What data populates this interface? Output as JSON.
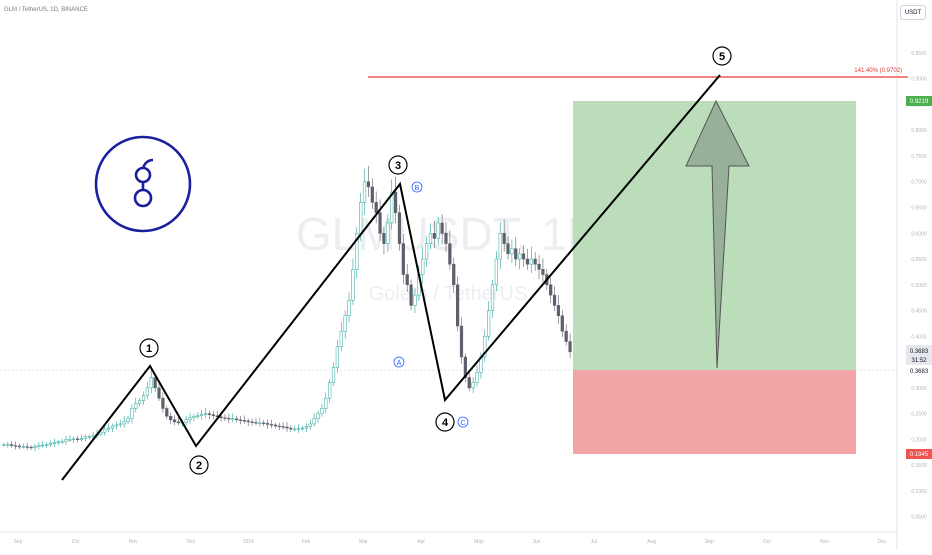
{
  "header": {
    "title": "GLM / TetherUS, 1D, BINANCE",
    "currency": "USDT"
  },
  "watermark": {
    "symbol": "GLMUSDT, 1D",
    "subtitle": "Golem / TetherUS"
  },
  "logo": {
    "letter": "g",
    "color": "#1a1f9e"
  },
  "colors": {
    "up": "#26a69a",
    "down": "#5d606b",
    "target_zone": "#b7dbb5",
    "stop_zone": "#f2a0a0",
    "fib_line": "#e53935",
    "wave_line": "#000000",
    "abc_label": "#2962ff",
    "arrow_fill": "#8fa894",
    "arrow_stroke": "#555555"
  },
  "chart_data": {
    "type": "candlestick",
    "symbol": "GLMUSDT",
    "interval": "1D",
    "exchange": "BINANCE",
    "x_months": [
      "Sep",
      "Oct",
      "Nov",
      "Dec",
      "2024",
      "Feb",
      "Mar",
      "Apr",
      "May",
      "Jun",
      "Jul",
      "Aug",
      "Sep",
      "Oct",
      "Nov",
      "Dec"
    ],
    "y_ticks": [
      "0.9500",
      "0.9000",
      "0.8500",
      "0.8000",
      "0.7500",
      "0.7000",
      "0.6500",
      "0.6000",
      "0.5500",
      "0.5000",
      "0.4500",
      "0.4000",
      "0.3500",
      "0.3000",
      "0.2500",
      "0.2000",
      "0.1500",
      "0.1000",
      "0.0500"
    ],
    "ylim": [
      0.03,
      1.01
    ],
    "price_closes": [
      0.19,
      0.19,
      0.188,
      0.187,
      0.186,
      0.186,
      0.185,
      0.184,
      0.186,
      0.188,
      0.189,
      0.19,
      0.192,
      0.194,
      0.195,
      0.196,
      0.2,
      0.2,
      0.201,
      0.2,
      0.202,
      0.205,
      0.205,
      0.207,
      0.21,
      0.214,
      0.22,
      0.222,
      0.226,
      0.228,
      0.23,
      0.235,
      0.24,
      0.26,
      0.27,
      0.275,
      0.285,
      0.3,
      0.32,
      0.3,
      0.28,
      0.26,
      0.245,
      0.238,
      0.234,
      0.232,
      0.233,
      0.238,
      0.242,
      0.245,
      0.246,
      0.248,
      0.25,
      0.248,
      0.246,
      0.244,
      0.242,
      0.241,
      0.24,
      0.24,
      0.238,
      0.237,
      0.236,
      0.234,
      0.233,
      0.232,
      0.232,
      0.231,
      0.229,
      0.228,
      0.226,
      0.225,
      0.224,
      0.222,
      0.22,
      0.22,
      0.221,
      0.222,
      0.225,
      0.23,
      0.24,
      0.25,
      0.26,
      0.28,
      0.31,
      0.34,
      0.38,
      0.41,
      0.44,
      0.47,
      0.53,
      0.6,
      0.66,
      0.7,
      0.69,
      0.66,
      0.64,
      0.6,
      0.58,
      0.62,
      0.68,
      0.64,
      0.58,
      0.52,
      0.5,
      0.46,
      0.48,
      0.52,
      0.55,
      0.58,
      0.6,
      0.59,
      0.62,
      0.6,
      0.58,
      0.54,
      0.5,
      0.42,
      0.36,
      0.32,
      0.3,
      0.31,
      0.33,
      0.36,
      0.4,
      0.45,
      0.5,
      0.55,
      0.6,
      0.58,
      0.56,
      0.57,
      0.55,
      0.56,
      0.55,
      0.54,
      0.55,
      0.54,
      0.53,
      0.52,
      0.5,
      0.48,
      0.46,
      0.44,
      0.41,
      0.39,
      0.37
    ],
    "current_price": "0.3683",
    "countdown": "31:52",
    "wave_labels": [
      "1",
      "2",
      "3",
      "4",
      "5"
    ],
    "abc_labels": [
      "A",
      "B",
      "C"
    ],
    "fib_label": "141.40% (0.9702)",
    "target_price": "0.9219",
    "stop_price": "0.1945",
    "entry_price": "0.3683",
    "wave_path": [
      {
        "date": "2023-09-18",
        "price": 0.15
      },
      {
        "date": "2023-11-21",
        "price": 0.38
      },
      {
        "date": "2023-12-12",
        "price": 0.215
      },
      {
        "date": "2024-03-12",
        "price": 0.762
      },
      {
        "date": "2024-04-13",
        "price": 0.29
      },
      {
        "date": "2024-09-08",
        "price": 0.97
      }
    ]
  }
}
